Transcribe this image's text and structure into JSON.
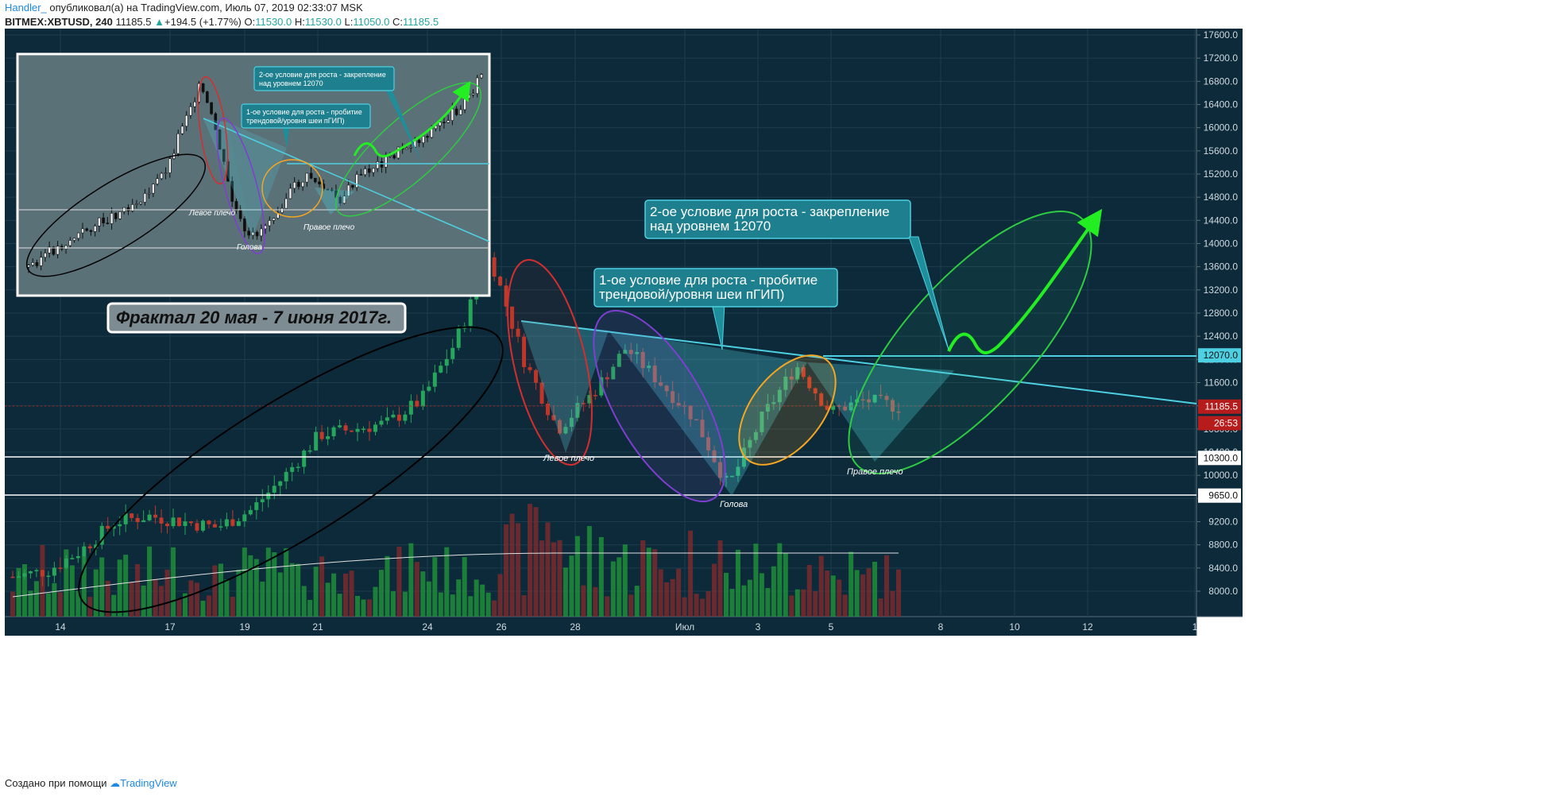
{
  "header": {
    "author": "Handler_",
    "published": " опубликовал(а) на TradingView.com, Июль 07, 2019 02:33:07 MSK",
    "symbol": "BITMEX:XBTUSD, 240",
    "price": "11185.5",
    "change": "+194.5 (+1.77%)",
    "o_label": "O:",
    "o": "11530.0",
    "h_label": "H:",
    "h": "11530.0",
    "l_label": "L:",
    "l": "11050.0",
    "c_label": "C:",
    "c": "11185.5"
  },
  "footer": {
    "text": "Создано при помощи",
    "brand": "TradingView"
  },
  "colors": {
    "background": "#0d2a3a",
    "up": "#26a65b",
    "down": "#c0392b",
    "cyan": "#4dd0e1",
    "price_tag": "#b71c1c"
  },
  "chart_data": {
    "type": "candlestick",
    "symbol": "BITMEX:XBTUSD",
    "timeframe": "240",
    "ylim": [
      7900,
      17800
    ],
    "y_ticks": [
      8000,
      8400,
      8800,
      9200,
      9600,
      10000,
      10400,
      10800,
      11200,
      11600,
      12000,
      12400,
      12800,
      13200,
      13600,
      14000,
      14400,
      14800,
      15200,
      15600,
      16000,
      16400,
      16800,
      17200,
      17600
    ],
    "x_ticks": [
      "14",
      "17",
      "19",
      "21",
      "24",
      "26",
      "28",
      "Июл",
      "3",
      "5",
      "8",
      "10",
      "12",
      "1"
    ],
    "price_tags": [
      {
        "label": "12070.0",
        "value": 12070,
        "kind": "level"
      },
      {
        "label": "11185.5",
        "value": 11185.5,
        "kind": "last"
      },
      {
        "label": "26:53",
        "value": 10900,
        "kind": "timer"
      },
      {
        "label": "10300.0",
        "value": 10300,
        "kind": "level"
      },
      {
        "label": "9650.0",
        "value": 9650,
        "kind": "level"
      }
    ],
    "annotations": {
      "left_shoulder": "Левое плечо",
      "head": "Голова",
      "right_shoulder": "Правое плечо",
      "callout1": [
        "1-ое условие для роста - пробитие",
        "трендовой/уровня шеи пГИП)"
      ],
      "callout2": [
        "2-ое условие для роста - закрепление",
        "над уровнем 12070"
      ],
      "fractal_title": "Фрактал 20 мая - 7 июня 2017г."
    },
    "approx_close_path": [
      {
        "x": "13",
        "close": 8250
      },
      {
        "x": "14",
        "close": 8350
      },
      {
        "x": "15",
        "close": 8700
      },
      {
        "x": "16",
        "close": 9200
      },
      {
        "x": "17",
        "close": 9300
      },
      {
        "x": "18",
        "close": 9200
      },
      {
        "x": "19",
        "close": 9100
      },
      {
        "x": "20",
        "close": 9400
      },
      {
        "x": "21",
        "close": 10000
      },
      {
        "x": "22",
        "close": 10700
      },
      {
        "x": "23",
        "close": 10800
      },
      {
        "x": "24",
        "close": 10900
      },
      {
        "x": "25",
        "close": 11300
      },
      {
        "x": "26",
        "close": 12300
      },
      {
        "x": "26.5",
        "close": 13800
      },
      {
        "x": "27",
        "close": 12000
      },
      {
        "x": "27.7",
        "close": 10800
      },
      {
        "x": "28",
        "close": 11400
      },
      {
        "x": "29",
        "close": 12200
      },
      {
        "x": "30",
        "close": 11600
      },
      {
        "x": "Июл",
        "close": 11000
      },
      {
        "x": "2",
        "close": 9800
      },
      {
        "x": "3",
        "close": 11000
      },
      {
        "x": "4",
        "close": 11900
      },
      {
        "x": "5",
        "close": 11100
      },
      {
        "x": "6",
        "close": 11300
      },
      {
        "x": "7",
        "close": 11185.5
      }
    ]
  }
}
